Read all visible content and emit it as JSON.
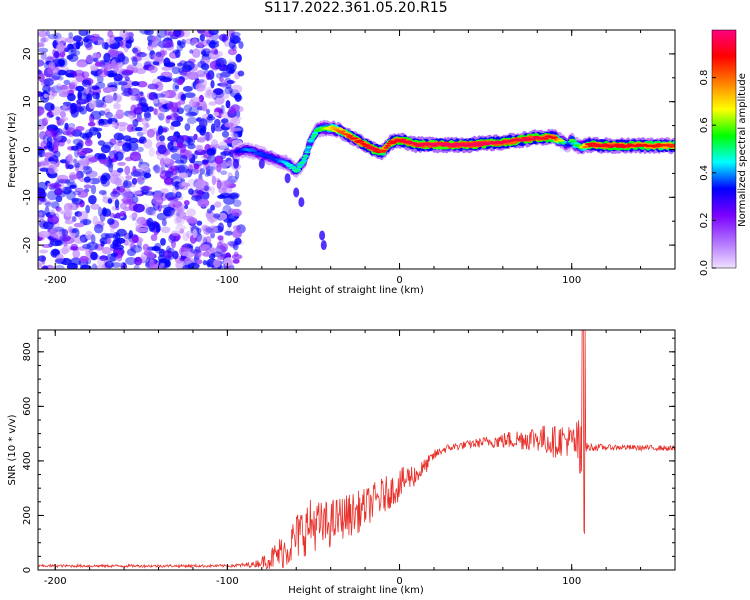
{
  "title": "S117.2022.361.05.20.R15",
  "colors": {
    "axis": "#000000",
    "snr_line": "#e8302a",
    "background": "#ffffff"
  },
  "chart_data": [
    {
      "type": "heatmap",
      "xlabel": "Height of straight line (km)",
      "ylabel": "Frequency (Hz)",
      "xlim": [
        -210,
        160
      ],
      "ylim": [
        -25,
        25
      ],
      "xticks": [
        -200,
        -100,
        0,
        100
      ],
      "yticks": [
        -20,
        -10,
        0,
        10,
        20
      ],
      "grid": false,
      "colorbar": {
        "label": "Normalized spectral amplitude",
        "range": [
          0,
          1
        ],
        "ticks": [
          "0.0",
          "0.2",
          "0.4",
          "0.6",
          "0.8"
        ],
        "tick_values": [
          0,
          0.2,
          0.4,
          0.6,
          0.8
        ],
        "colormap": [
          "#f0e0ff",
          "#b070ff",
          "#7a00ff",
          "#0000ff",
          "#00ffff",
          "#00ff00",
          "#ffff00",
          "#ff8000",
          "#ff0000",
          "#ff0080"
        ]
      },
      "noise_region": {
        "x": [
          -210,
          -92
        ],
        "y": [
          -25,
          25
        ],
        "amplitude": [
          0.05,
          0.35
        ]
      },
      "ridge": {
        "x": [
          -95,
          -88,
          -80,
          -72,
          -65,
          -60,
          -55,
          -52,
          -48,
          -44,
          -40,
          -35,
          -30,
          -25,
          -20,
          -15,
          -10,
          -5,
          0,
          10,
          20,
          40,
          60,
          80,
          90,
          95,
          98,
          100,
          102,
          105,
          110,
          120,
          140,
          160
        ],
        "frequency": [
          -0.5,
          0,
          -1,
          -2,
          -3,
          -4.5,
          -2,
          1.5,
          4,
          4.5,
          4.5,
          4,
          3,
          2,
          1,
          0,
          -0.5,
          1.5,
          2,
          1,
          1,
          1,
          1.5,
          2.5,
          2.5,
          1.5,
          1,
          2,
          1,
          0.5,
          1,
          0.8,
          0.8,
          0.8
        ],
        "amplitude": [
          0.3,
          0.4,
          0.35,
          0.35,
          0.45,
          0.5,
          0.5,
          0.45,
          0.55,
          0.6,
          0.7,
          0.8,
          0.85,
          0.9,
          0.9,
          0.95,
          0.85,
          0.9,
          0.92,
          0.95,
          0.97,
          0.97,
          0.95,
          0.95,
          0.9,
          0.6,
          0.3,
          0.6,
          0.5,
          0.6,
          0.9,
          0.92,
          0.9,
          0.85
        ]
      }
    },
    {
      "type": "line",
      "xlabel": "Height of straight line (km)",
      "ylabel": "SNR (10 * v/v)",
      "xlim": [
        -210,
        160
      ],
      "ylim": [
        0,
        880
      ],
      "xticks": [
        -200,
        -100,
        0,
        100
      ],
      "yticks": [
        0,
        200,
        400,
        600,
        800
      ],
      "grid": false,
      "series": [
        {
          "x": [
            -210,
            -180,
            -150,
            -120,
            -100,
            -85,
            -80,
            -75,
            -70,
            -65,
            -60,
            -55,
            -50,
            -45,
            -40,
            -35,
            -30,
            -25,
            -20,
            -15,
            -10,
            -5,
            0,
            5,
            10,
            15,
            20,
            25,
            30,
            40,
            50,
            60,
            70,
            80,
            90,
            95,
            100,
            104,
            106,
            107,
            108,
            110,
            120,
            130,
            140,
            150,
            160
          ],
          "values": [
            15,
            15,
            15,
            15,
            15,
            20,
            30,
            40,
            60,
            80,
            120,
            150,
            170,
            160,
            170,
            190,
            200,
            210,
            230,
            250,
            270,
            290,
            310,
            340,
            350,
            380,
            420,
            440,
            450,
            460,
            470,
            475,
            480,
            485,
            470,
            480,
            470,
            460,
            300,
            120,
            450,
            450,
            450,
            450,
            448,
            448,
            445
          ],
          "jitter": [
            5,
            5,
            5,
            5,
            5,
            10,
            20,
            40,
            60,
            70,
            90,
            100,
            100,
            90,
            90,
            80,
            80,
            80,
            70,
            70,
            70,
            60,
            60,
            50,
            40,
            30,
            20,
            15,
            15,
            15,
            20,
            30,
            40,
            50,
            60,
            60,
            60,
            100,
            250,
            250,
            20,
            15,
            10,
            10,
            10,
            10,
            10
          ]
        }
      ]
    }
  ]
}
